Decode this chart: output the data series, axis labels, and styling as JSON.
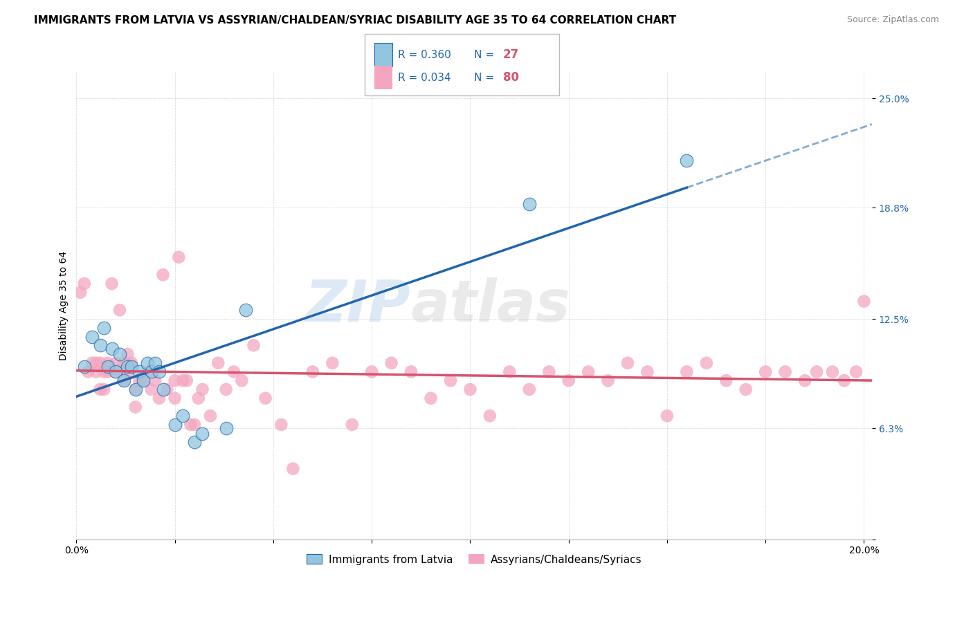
{
  "title": "IMMIGRANTS FROM LATVIA VS ASSYRIAN/CHALDEAN/SYRIAC DISABILITY AGE 35 TO 64 CORRELATION CHART",
  "source": "Source: ZipAtlas.com",
  "ylabel": "Disability Age 35 to 64",
  "xlim": [
    0.0,
    0.202
  ],
  "ylim": [
    0.0,
    0.265
  ],
  "xticks": [
    0.0,
    0.025,
    0.05,
    0.075,
    0.1,
    0.125,
    0.15,
    0.175,
    0.2
  ],
  "xticklabels": [
    "0.0%",
    "",
    "",
    "",
    "",
    "",
    "",
    "",
    "20.0%"
  ],
  "ytick_positions": [
    0.0,
    0.063,
    0.125,
    0.188,
    0.25
  ],
  "ytick_labels": [
    "",
    "6.3%",
    "12.5%",
    "18.8%",
    "25.0%"
  ],
  "legend_r1": "R = 0.360",
  "legend_n1": "27",
  "legend_r2": "R = 0.034",
  "legend_n2": "80",
  "color_blue": "#92c5de",
  "color_pink": "#f4a6c0",
  "color_blue_line": "#2166ac",
  "color_pink_line": "#d6536d",
  "watermark": "ZIPatlas",
  "blue_scatter_x": [
    0.002,
    0.004,
    0.006,
    0.007,
    0.008,
    0.009,
    0.01,
    0.011,
    0.012,
    0.013,
    0.014,
    0.015,
    0.016,
    0.017,
    0.018,
    0.019,
    0.02,
    0.021,
    0.022,
    0.025,
    0.027,
    0.03,
    0.032,
    0.038,
    0.043,
    0.115,
    0.155
  ],
  "blue_scatter_y": [
    0.098,
    0.115,
    0.11,
    0.12,
    0.098,
    0.108,
    0.095,
    0.105,
    0.09,
    0.098,
    0.098,
    0.085,
    0.095,
    0.09,
    0.1,
    0.095,
    0.1,
    0.095,
    0.085,
    0.065,
    0.07,
    0.055,
    0.06,
    0.063,
    0.13,
    0.19,
    0.215
  ],
  "pink_scatter_x": [
    0.001,
    0.002,
    0.003,
    0.004,
    0.005,
    0.005,
    0.006,
    0.006,
    0.007,
    0.007,
    0.008,
    0.008,
    0.009,
    0.01,
    0.01,
    0.011,
    0.012,
    0.012,
    0.013,
    0.013,
    0.014,
    0.015,
    0.015,
    0.016,
    0.017,
    0.018,
    0.019,
    0.02,
    0.021,
    0.022,
    0.023,
    0.025,
    0.025,
    0.026,
    0.027,
    0.028,
    0.029,
    0.03,
    0.031,
    0.032,
    0.034,
    0.036,
    0.038,
    0.04,
    0.042,
    0.045,
    0.048,
    0.052,
    0.055,
    0.06,
    0.065,
    0.07,
    0.075,
    0.08,
    0.085,
    0.09,
    0.095,
    0.1,
    0.105,
    0.11,
    0.115,
    0.12,
    0.125,
    0.13,
    0.135,
    0.14,
    0.145,
    0.15,
    0.155,
    0.16,
    0.165,
    0.17,
    0.175,
    0.18,
    0.185,
    0.188,
    0.192,
    0.195,
    0.198,
    0.2
  ],
  "pink_scatter_y": [
    0.14,
    0.145,
    0.095,
    0.1,
    0.095,
    0.1,
    0.1,
    0.085,
    0.095,
    0.085,
    0.1,
    0.095,
    0.145,
    0.095,
    0.1,
    0.13,
    0.1,
    0.09,
    0.105,
    0.095,
    0.1,
    0.085,
    0.075,
    0.09,
    0.09,
    0.095,
    0.085,
    0.09,
    0.08,
    0.15,
    0.085,
    0.09,
    0.08,
    0.16,
    0.09,
    0.09,
    0.065,
    0.065,
    0.08,
    0.085,
    0.07,
    0.1,
    0.085,
    0.095,
    0.09,
    0.11,
    0.08,
    0.065,
    0.04,
    0.095,
    0.1,
    0.065,
    0.095,
    0.1,
    0.095,
    0.08,
    0.09,
    0.085,
    0.07,
    0.095,
    0.085,
    0.095,
    0.09,
    0.095,
    0.09,
    0.1,
    0.095,
    0.07,
    0.095,
    0.1,
    0.09,
    0.085,
    0.095,
    0.095,
    0.09,
    0.095,
    0.095,
    0.09,
    0.095,
    0.135
  ],
  "title_fontsize": 11,
  "axis_label_fontsize": 10,
  "tick_fontsize": 10
}
